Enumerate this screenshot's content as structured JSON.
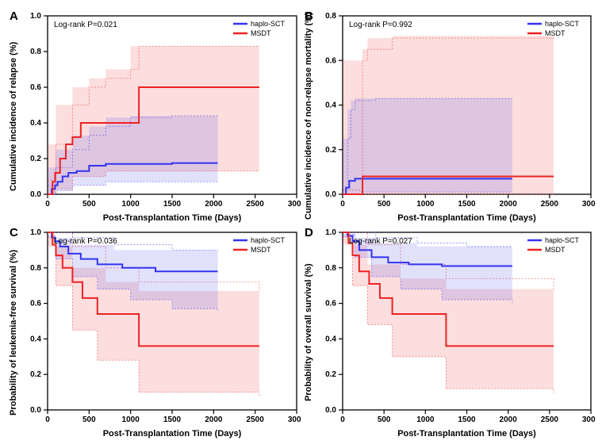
{
  "global": {
    "xlabel": "Post-Transplantation Time (Days)",
    "xlim": [
      0,
      3000
    ],
    "xtick_step": 500,
    "ytick_step": 0.2,
    "legend": [
      {
        "label": "haplo-SCT",
        "color": "#3333ee"
      },
      {
        "label": "MSDT",
        "color": "#ee2222"
      }
    ],
    "axis_color": "#000000",
    "aspect_w": 300,
    "aspect_h": 210,
    "tick_fontsize": 10,
    "axis_label_fontsize": 11,
    "stat_fontsize": 10,
    "legend_fontsize": 9
  },
  "panels": [
    {
      "id": "A",
      "ylabel": "Cumulative incidence of relapse (%)",
      "stat": "Log-rank P=0.021",
      "ylim": [
        0,
        1.0
      ],
      "legend_pos": "top-right",
      "haplo": {
        "line": [
          [
            0,
            0
          ],
          [
            50,
            0.03
          ],
          [
            90,
            0.05
          ],
          [
            120,
            0.07
          ],
          [
            180,
            0.1
          ],
          [
            250,
            0.12
          ],
          [
            350,
            0.13
          ],
          [
            500,
            0.16
          ],
          [
            700,
            0.17
          ],
          [
            1000,
            0.17
          ],
          [
            1500,
            0.175
          ],
          [
            2050,
            0.175
          ]
        ],
        "ci_low": [
          [
            0,
            0
          ],
          [
            100,
            0.02
          ],
          [
            300,
            0.05
          ],
          [
            700,
            0.07
          ],
          [
            1500,
            0.07
          ],
          [
            2050,
            0.07
          ]
        ],
        "ci_high": [
          [
            0,
            0.05
          ],
          [
            100,
            0.15
          ],
          [
            300,
            0.25
          ],
          [
            500,
            0.33
          ],
          [
            700,
            0.38
          ],
          [
            1000,
            0.43
          ],
          [
            1500,
            0.44
          ],
          [
            2050,
            0.44
          ]
        ]
      },
      "msdt": {
        "line": [
          [
            0,
            0
          ],
          [
            60,
            0.07
          ],
          [
            90,
            0.12
          ],
          [
            150,
            0.2
          ],
          [
            220,
            0.28
          ],
          [
            300,
            0.32
          ],
          [
            400,
            0.4
          ],
          [
            550,
            0.4
          ],
          [
            700,
            0.4
          ],
          [
            1000,
            0.4
          ],
          [
            1100,
            0.6
          ],
          [
            2550,
            0.6
          ]
        ],
        "ci_low": [
          [
            0,
            0
          ],
          [
            100,
            0.03
          ],
          [
            300,
            0.1
          ],
          [
            700,
            0.13
          ],
          [
            1500,
            0.13
          ],
          [
            2550,
            0.13
          ]
        ],
        "ci_high": [
          [
            0,
            0.08
          ],
          [
            100,
            0.28
          ],
          [
            300,
            0.5
          ],
          [
            500,
            0.6
          ],
          [
            700,
            0.65
          ],
          [
            1000,
            0.7
          ],
          [
            1100,
            0.83
          ],
          [
            2550,
            0.83
          ]
        ]
      }
    },
    {
      "id": "B",
      "ylabel": "Cumulative incidence of non-relapse mortality (%)",
      "stat": "Log-rank P=0.992",
      "ylim": [
        0,
        0.8
      ],
      "legend_pos": "top-right",
      "haplo": {
        "line": [
          [
            0,
            0
          ],
          [
            40,
            0.03
          ],
          [
            80,
            0.06
          ],
          [
            150,
            0.07
          ],
          [
            400,
            0.07
          ],
          [
            800,
            0.07
          ],
          [
            2050,
            0.07
          ]
        ],
        "ci_low": [
          [
            0,
            0
          ],
          [
            200,
            0.01
          ],
          [
            2050,
            0.01
          ]
        ],
        "ci_high": [
          [
            0,
            0.02
          ],
          [
            60,
            0.25
          ],
          [
            100,
            0.38
          ],
          [
            150,
            0.42
          ],
          [
            400,
            0.43
          ],
          [
            2050,
            0.43
          ]
        ]
      },
      "msdt": {
        "line": [
          [
            0,
            0
          ],
          [
            200,
            0
          ],
          [
            240,
            0.08
          ],
          [
            2550,
            0.08
          ]
        ],
        "ci_low": [
          [
            0,
            0
          ],
          [
            240,
            0
          ],
          [
            2550,
            0
          ]
        ],
        "ci_high": [
          [
            0,
            0.02
          ],
          [
            240,
            0.6
          ],
          [
            300,
            0.65
          ],
          [
            600,
            0.7
          ],
          [
            2550,
            0.71
          ]
        ]
      }
    },
    {
      "id": "C",
      "ylabel": "Probability of leukemia-free survival (%)",
      "stat": "Log-rank P=0.036",
      "ylim": [
        0,
        1.0
      ],
      "legend_pos": "top-right",
      "haplo": {
        "line": [
          [
            0,
            1.0
          ],
          [
            50,
            0.97
          ],
          [
            90,
            0.95
          ],
          [
            150,
            0.92
          ],
          [
            250,
            0.88
          ],
          [
            400,
            0.85
          ],
          [
            600,
            0.82
          ],
          [
            900,
            0.8
          ],
          [
            1300,
            0.78
          ],
          [
            2050,
            0.78
          ]
        ],
        "ci_low": [
          [
            0,
            0.98
          ],
          [
            100,
            0.85
          ],
          [
            300,
            0.75
          ],
          [
            600,
            0.68
          ],
          [
            1000,
            0.62
          ],
          [
            1500,
            0.57
          ],
          [
            2050,
            0.56
          ]
        ],
        "ci_high": [
          [
            0,
            1.0
          ],
          [
            300,
            0.97
          ],
          [
            800,
            0.93
          ],
          [
            1500,
            0.9
          ],
          [
            2050,
            0.9
          ]
        ]
      },
      "msdt": {
        "line": [
          [
            0,
            1.0
          ],
          [
            60,
            0.93
          ],
          [
            100,
            0.87
          ],
          [
            180,
            0.8
          ],
          [
            300,
            0.72
          ],
          [
            420,
            0.63
          ],
          [
            600,
            0.54
          ],
          [
            800,
            0.54
          ],
          [
            1000,
            0.54
          ],
          [
            1100,
            0.36
          ],
          [
            2550,
            0.36
          ]
        ],
        "ci_low": [
          [
            0,
            0.97
          ],
          [
            100,
            0.7
          ],
          [
            300,
            0.45
          ],
          [
            600,
            0.28
          ],
          [
            1100,
            0.1
          ],
          [
            2550,
            0.08
          ]
        ],
        "ci_high": [
          [
            0,
            1.0
          ],
          [
            300,
            0.92
          ],
          [
            700,
            0.8
          ],
          [
            1100,
            0.72
          ],
          [
            2550,
            0.67
          ]
        ]
      }
    },
    {
      "id": "D",
      "ylabel": "Probability of overall survival (%)",
      "stat": "Log-rank P=0.027",
      "ylim": [
        0,
        1.0
      ],
      "legend_pos": "top-right",
      "haplo": {
        "line": [
          [
            0,
            1.0
          ],
          [
            60,
            0.98
          ],
          [
            120,
            0.95
          ],
          [
            200,
            0.9
          ],
          [
            350,
            0.86
          ],
          [
            550,
            0.83
          ],
          [
            800,
            0.82
          ],
          [
            1200,
            0.81
          ],
          [
            2050,
            0.81
          ]
        ],
        "ci_low": [
          [
            0,
            0.99
          ],
          [
            150,
            0.86
          ],
          [
            350,
            0.75
          ],
          [
            700,
            0.68
          ],
          [
            1200,
            0.62
          ],
          [
            2050,
            0.6
          ]
        ],
        "ci_high": [
          [
            0,
            1.0
          ],
          [
            400,
            0.97
          ],
          [
            900,
            0.94
          ],
          [
            1500,
            0.92
          ],
          [
            2050,
            0.92
          ]
        ]
      },
      "msdt": {
        "line": [
          [
            0,
            1.0
          ],
          [
            70,
            0.94
          ],
          [
            120,
            0.87
          ],
          [
            200,
            0.78
          ],
          [
            320,
            0.71
          ],
          [
            450,
            0.63
          ],
          [
            600,
            0.54
          ],
          [
            850,
            0.54
          ],
          [
            1000,
            0.54
          ],
          [
            1250,
            0.36
          ],
          [
            2550,
            0.36
          ]
        ],
        "ci_low": [
          [
            0,
            0.98
          ],
          [
            120,
            0.7
          ],
          [
            300,
            0.48
          ],
          [
            600,
            0.3
          ],
          [
            1250,
            0.12
          ],
          [
            2550,
            0.09
          ]
        ],
        "ci_high": [
          [
            0,
            1.0
          ],
          [
            300,
            0.93
          ],
          [
            700,
            0.82
          ],
          [
            1250,
            0.74
          ],
          [
            2550,
            0.68
          ]
        ]
      }
    }
  ]
}
